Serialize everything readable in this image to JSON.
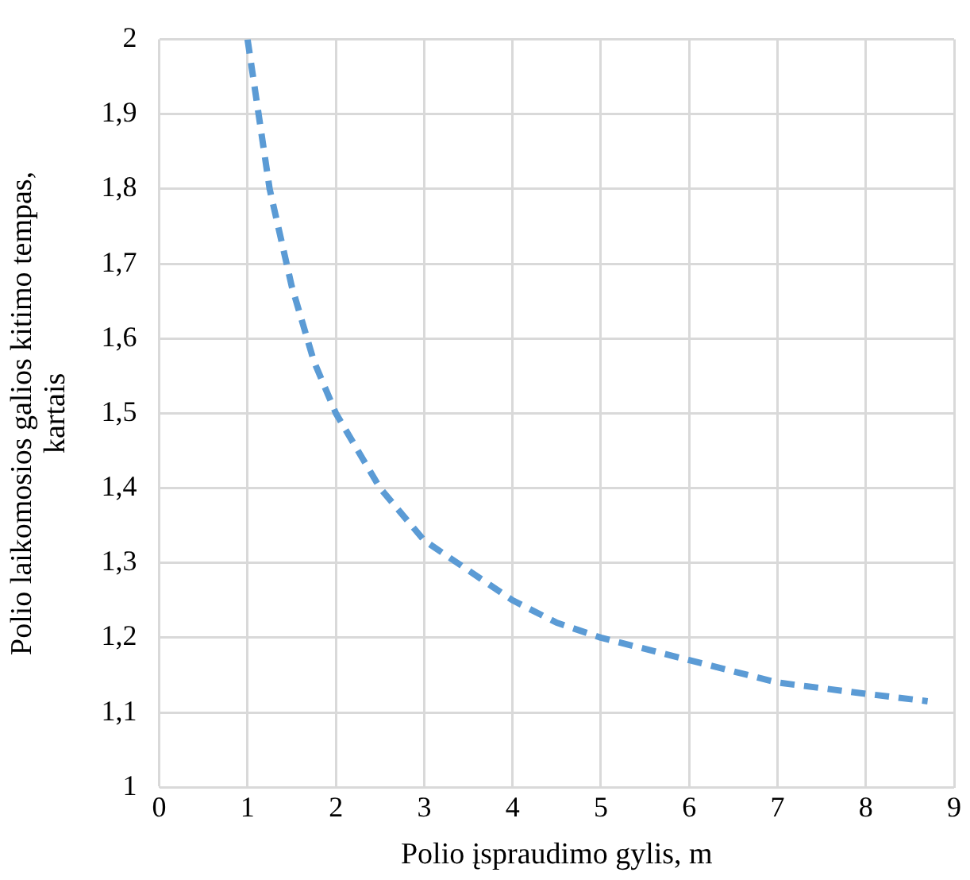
{
  "chart_data": {
    "type": "line",
    "xlabel": "Polio įspraudimo gylis, m",
    "ylabel": "Polio laikomosios galios kitimo tempas, kartais",
    "x": [
      1,
      1.25,
      1.5,
      1.75,
      2,
      2.5,
      3,
      3.5,
      4,
      4.5,
      5,
      6,
      7,
      8,
      8.7
    ],
    "series": [
      {
        "color": "#5b9bd5",
        "values": [
          2,
          1.8,
          1.67,
          1.57,
          1.5,
          1.4,
          1.33,
          1.29,
          1.25,
          1.22,
          1.2,
          1.17,
          1.14,
          1.125,
          1.115
        ]
      }
    ],
    "xlim": [
      0,
      9
    ],
    "xticks": [
      0,
      1,
      2,
      3,
      4,
      5,
      6,
      7,
      8,
      9
    ],
    "ylim": [
      1,
      2
    ],
    "yticks": [
      1,
      {
        "value": 1.1,
        "label": "1,1"
      },
      {
        "value": 1.2,
        "label": "1,2"
      },
      {
        "value": 1.3,
        "label": "1,3"
      },
      {
        "value": 1.4,
        "label": "1,4"
      },
      {
        "value": 1.5,
        "label": "1,5"
      },
      {
        "value": 1.6,
        "label": "1,6"
      },
      {
        "value": 1.7,
        "label": "1,7"
      },
      {
        "value": 1.8,
        "label": "1,8"
      },
      {
        "value": 1.9,
        "label": "1,9"
      },
      2
    ],
    "grid": true,
    "legend": false,
    "marker": "none",
    "line_style": "dashed"
  }
}
